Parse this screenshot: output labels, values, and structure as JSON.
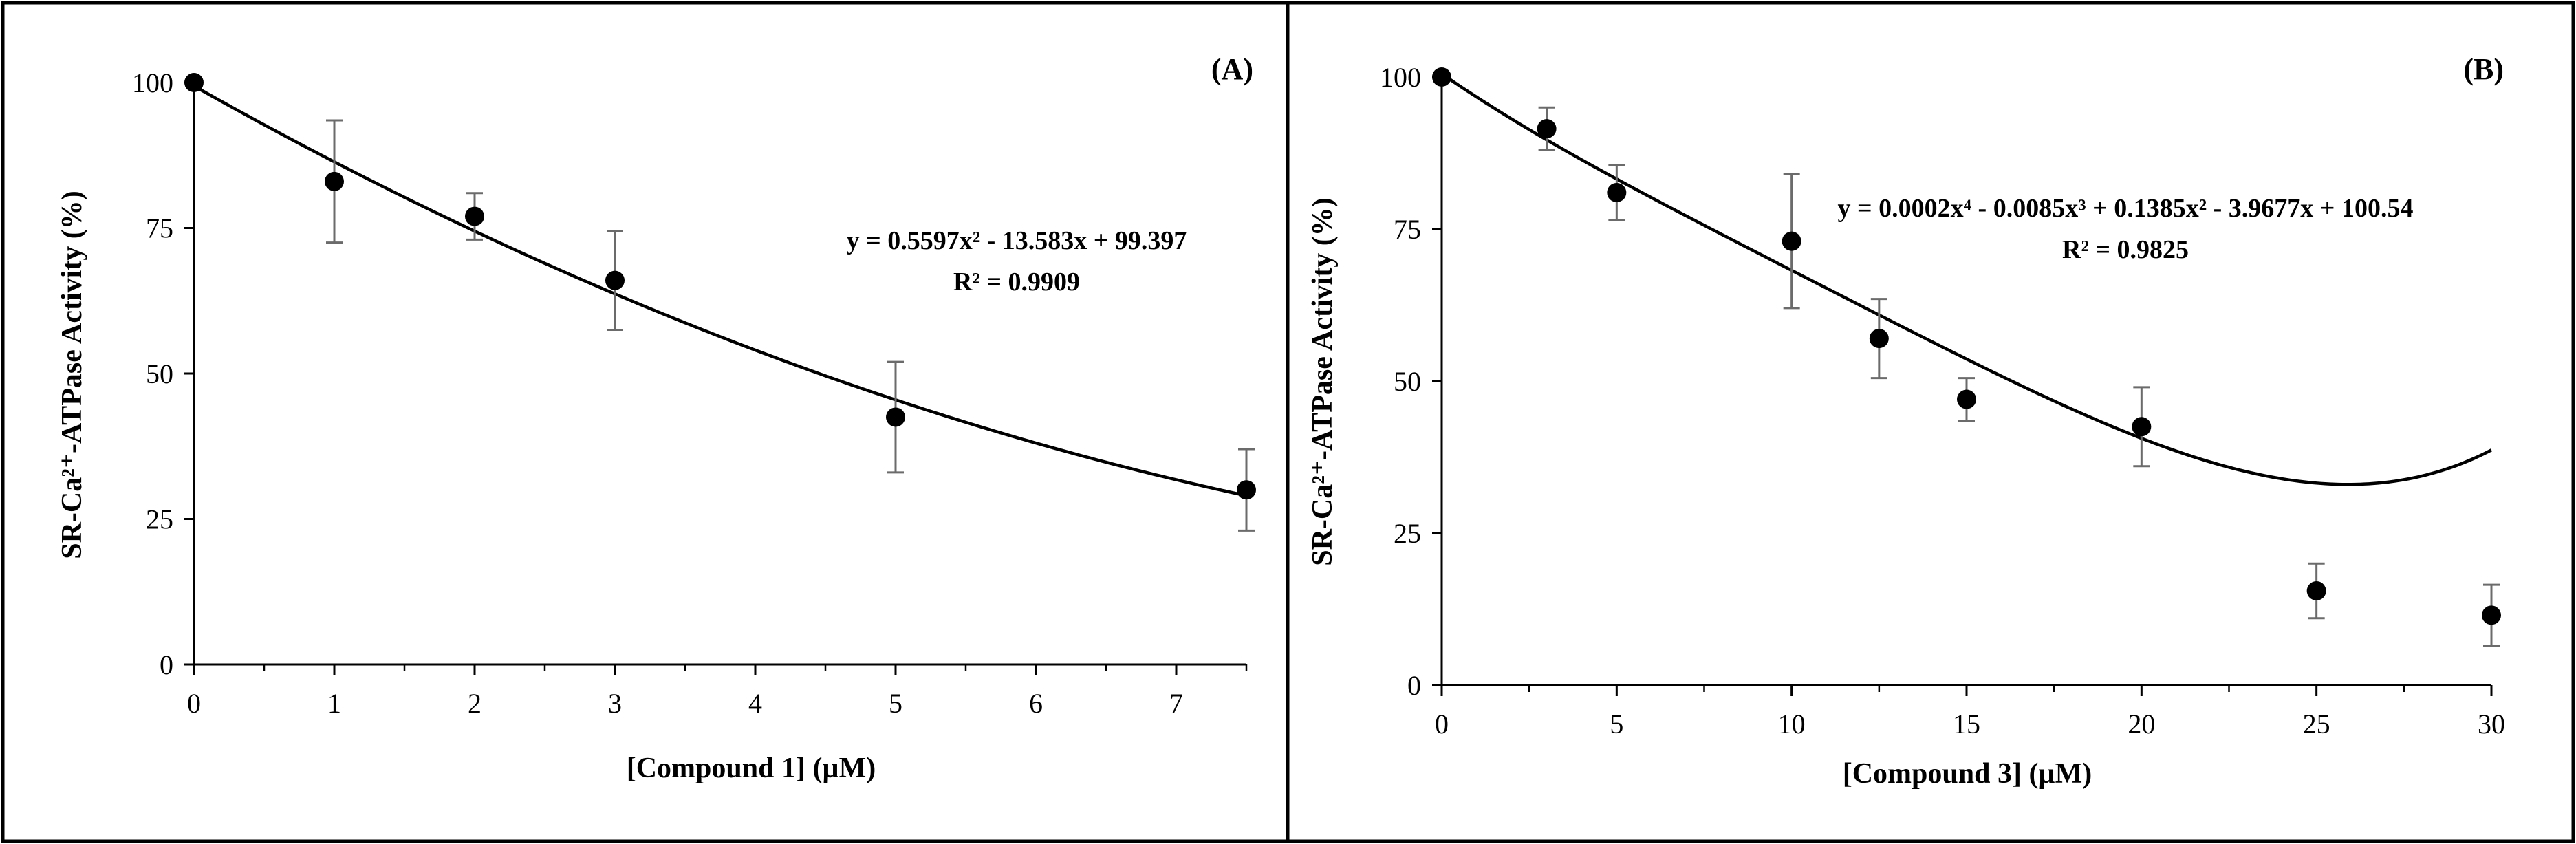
{
  "chart_data": [
    {
      "type": "scatter",
      "panel_label": "(A)",
      "xlabel": "[Compound 1] (µM)",
      "ylabel": "SR-Ca²⁺-ATPase Activity (%)",
      "xlim": [
        0,
        7.5
      ],
      "ylim": [
        0,
        100
      ],
      "x_ticks": [
        0,
        1,
        2,
        3,
        4,
        5,
        6,
        7
      ],
      "x_tick_labels": [
        "0",
        "1",
        "2",
        "3",
        "4",
        "5",
        "6",
        "7"
      ],
      "y_ticks": [
        0,
        25,
        50,
        75,
        100
      ],
      "y_tick_labels": [
        "0",
        "25",
        "50",
        "75",
        "100"
      ],
      "x_minor_ticks": [
        0.5,
        1.5,
        2.5,
        3.5,
        4.5,
        5.5,
        6.5,
        7.5
      ],
      "grid": false,
      "series": [
        {
          "name": "SR-Ca²⁺-ATPase activity",
          "x": [
            0,
            1,
            2,
            3,
            5,
            7.5
          ],
          "y": [
            100,
            83,
            77,
            66,
            42.5,
            30
          ],
          "err": [
            0,
            10.5,
            4,
            8.5,
            9.5,
            7
          ]
        }
      ],
      "fit": {
        "coefficients": [
          0.5597,
          -13.583,
          99.397
        ],
        "equation_label": "y = 0.5597x² - 13.583x + 99.397",
        "r2_label": "R² = 0.9909",
        "annotation_placement": "right-center"
      }
    },
    {
      "type": "scatter",
      "panel_label": "(B)",
      "xlabel": "[Compound 3] (µM)",
      "ylabel": "SR-Ca²⁺-ATPase Activity (%)",
      "xlim": [
        0,
        30
      ],
      "ylim": [
        0,
        100
      ],
      "x_ticks": [
        0,
        5,
        10,
        15,
        20,
        25,
        30
      ],
      "x_tick_labels": [
        "0",
        "5",
        "10",
        "15",
        "20",
        "25",
        "30"
      ],
      "y_ticks": [
        0,
        25,
        50,
        75,
        100
      ],
      "y_tick_labels": [
        "0",
        "25",
        "50",
        "75",
        "100"
      ],
      "x_minor_ticks": [
        2.5,
        7.5,
        12.5,
        17.5,
        22.5,
        27.5
      ],
      "grid": false,
      "series": [
        {
          "name": "SR-Ca²⁺-ATPase activity",
          "x": [
            0,
            3,
            5,
            10,
            12.5,
            15,
            20,
            25,
            30
          ],
          "y": [
            100,
            91.5,
            81,
            73,
            57,
            47,
            42.5,
            15.5,
            11.5
          ],
          "err": [
            0,
            3.5,
            4.5,
            11,
            6.5,
            3.5,
            6.5,
            4.5,
            5
          ]
        }
      ],
      "fit": {
        "coefficients": [
          0.0002,
          -0.0085,
          0.1385,
          -3.9677,
          100.54
        ],
        "equation_label": "y = 0.0002x⁴ - 0.0085x³ + 0.1385x² - 3.9677x + 100.54",
        "r2_label": "R² = 0.9825",
        "annotation_placement": "top-right"
      }
    }
  ]
}
